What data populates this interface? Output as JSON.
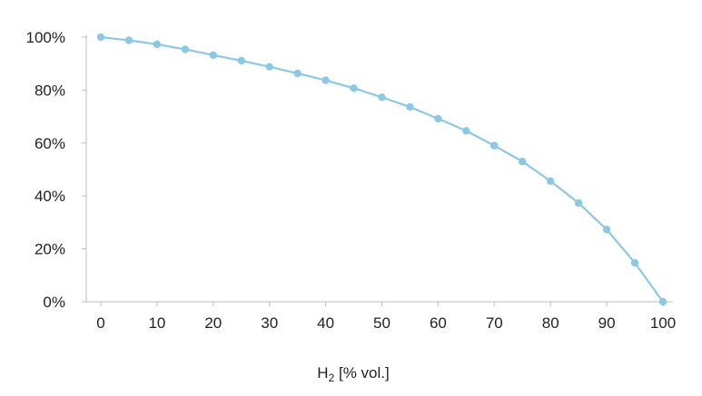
{
  "chart_data": {
    "type": "line",
    "title": "",
    "xlabel": {
      "base": "H",
      "subscript": "2",
      "suffix": " [% vol.]"
    },
    "ylabel": "",
    "x": [
      0,
      5,
      10,
      15,
      20,
      25,
      30,
      35,
      40,
      45,
      50,
      55,
      60,
      65,
      70,
      75,
      80,
      85,
      90,
      95,
      100
    ],
    "series": [
      {
        "values": [
          100,
          98.8,
          97.3,
          95.4,
          93.2,
          91.1,
          88.8,
          86.3,
          83.7,
          80.7,
          77.3,
          73.6,
          69.2,
          64.6,
          59,
          53,
          45.6,
          37.3,
          27.3,
          14.7,
          0
        ],
        "color": "#8ac8e6"
      }
    ],
    "xlim": [
      0,
      100
    ],
    "ylim": [
      0,
      100
    ],
    "x_ticks": [
      "0",
      "10",
      "20",
      "30",
      "40",
      "50",
      "60",
      "70",
      "80",
      "90",
      "100"
    ],
    "y_ticks": [
      "0%",
      "20%",
      "40%",
      "60%",
      "80%",
      "100%"
    ],
    "grid": false,
    "legend": "none"
  }
}
